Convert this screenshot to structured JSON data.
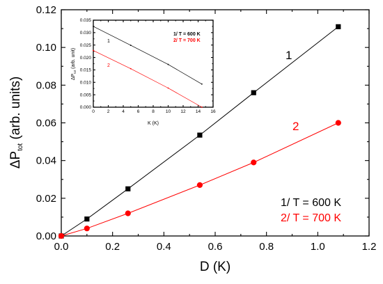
{
  "chart_data": [
    {
      "type": "line",
      "xlabel_base": "D (K)",
      "ylabel_main": "ΔP",
      "ylabel_sub": "tot",
      "ylabel_suffix": " (arb. units)",
      "xlim": [
        0,
        1.2
      ],
      "ylim": [
        0,
        0.12
      ],
      "xticks": [
        "0.0",
        "0.2",
        "0.4",
        "0.6",
        "0.8",
        "1.0",
        "1.2"
      ],
      "yticks": [
        "0.00",
        "0.02",
        "0.04",
        "0.06",
        "0.08",
        "0.10",
        "0.12"
      ],
      "series": [
        {
          "name": "1/ T = 600 K",
          "curve_label": "1",
          "color": "#000000",
          "marker": "square",
          "x": [
            0,
            0.1,
            0.26,
            0.54,
            0.75,
            1.08
          ],
          "y": [
            0.0,
            0.009,
            0.025,
            0.0535,
            0.076,
            0.111
          ]
        },
        {
          "name": "2/ T = 700 K",
          "curve_label": "2",
          "color": "#ff0000",
          "marker": "circle",
          "x": [
            0,
            0.1,
            0.26,
            0.54,
            0.75,
            1.08
          ],
          "y": [
            0.0,
            0.004,
            0.012,
            0.027,
            0.039,
            0.06
          ]
        }
      ],
      "legend": [
        "1/ T = 600 K",
        "2/ T = 700 K"
      ],
      "legend_placement": "bottom-right"
    },
    {
      "type": "line",
      "xlabel": "K (K)",
      "ylabel_main": "ΔP",
      "ylabel_sub": "tot",
      "ylabel_suffix": " (arb. unit)",
      "xlim": [
        0,
        16
      ],
      "ylim": [
        0,
        0.035
      ],
      "xticks": [
        "0",
        "2",
        "4",
        "6",
        "8",
        "10",
        "12",
        "14",
        "16"
      ],
      "yticks": [
        "0.000",
        "0.005",
        "0.010",
        "0.015",
        "0.020",
        "0.025",
        "0.030",
        "0.035"
      ],
      "series": [
        {
          "name": "1/ T = 600 K",
          "curve_label": "1",
          "color": "#000000",
          "x": [
            0,
            5,
            10,
            14.5
          ],
          "y": [
            0.0325,
            0.0249,
            0.0172,
            0.0093
          ]
        },
        {
          "name": "2/ T = 700 K",
          "curve_label": "2",
          "color": "#ff0000",
          "x": [
            0,
            5,
            10,
            14.5
          ],
          "y": [
            0.0228,
            0.0155,
            0.0077,
            0.0
          ]
        }
      ],
      "legend": [
        "1/ T = 600 K",
        "2/ T = 700 K"
      ],
      "legend_placement": "top-right"
    }
  ]
}
